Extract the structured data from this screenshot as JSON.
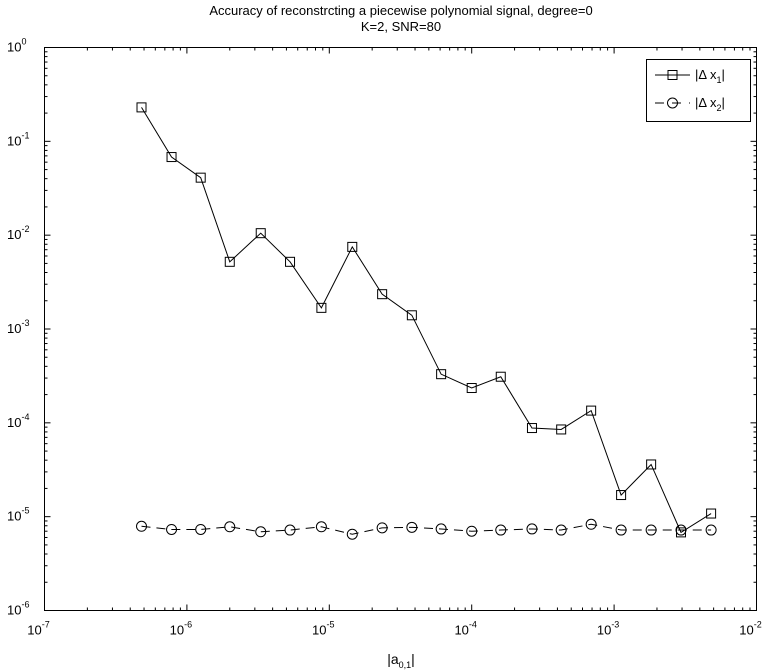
{
  "chart_data": {
    "type": "line",
    "title": "Accuracy of reconstrcting a piecewise polynomial signal, degree=0",
    "subtitle": "K=2, SNR=80",
    "xlabel": {
      "base": "|a",
      "sub": "0,1",
      "end": "|"
    },
    "ylabel": "",
    "xscale": "log",
    "yscale": "log",
    "xlim": [
      1e-07,
      0.01
    ],
    "ylim": [
      1e-06,
      1
    ],
    "grid": false,
    "legend_position": "top-right",
    "x_tick_values": [
      1e-07,
      1e-06,
      1e-05,
      0.0001,
      0.001,
      0.01
    ],
    "x_tick_labels": [
      {
        "base": "10",
        "exp": "-7"
      },
      {
        "base": "10",
        "exp": "-6"
      },
      {
        "base": "10",
        "exp": "-5"
      },
      {
        "base": "10",
        "exp": "-4"
      },
      {
        "base": "10",
        "exp": "-3"
      },
      {
        "base": "10",
        "exp": "-2"
      }
    ],
    "y_tick_values": [
      1e-06,
      1e-05,
      0.0001,
      0.001,
      0.01,
      0.1,
      1
    ],
    "y_tick_labels": [
      {
        "base": "10",
        "exp": "-6"
      },
      {
        "base": "10",
        "exp": "-5"
      },
      {
        "base": "10",
        "exp": "-4"
      },
      {
        "base": "10",
        "exp": "-3"
      },
      {
        "base": "10",
        "exp": "-2"
      },
      {
        "base": "10",
        "exp": "-1"
      },
      {
        "base": "10",
        "exp": "0"
      }
    ],
    "x": [
      4.8e-07,
      7.8e-07,
      1.25e-06,
      2e-06,
      3.3e-06,
      5.3e-06,
      8.8e-06,
      1.45e-05,
      2.35e-05,
      3.8e-05,
      6.1e-05,
      0.0001,
      0.00016,
      0.000265,
      0.000425,
      0.00069,
      0.00112,
      0.00182,
      0.00295,
      0.0048
    ],
    "series": [
      {
        "label": {
          "text": "|Δ x",
          "sub": "1",
          "end": "|"
        },
        "marker": "square",
        "line": "solid",
        "values": [
          0.23,
          0.068,
          0.041,
          0.0052,
          0.0105,
          0.0052,
          0.00168,
          0.0075,
          0.00235,
          0.0014,
          0.00033,
          0.000235,
          0.00031,
          8.8e-05,
          8.5e-05,
          0.000135,
          1.7e-05,
          3.6e-05,
          6.8e-06,
          1.08e-05
        ]
      },
      {
        "label": {
          "text": "|Δ x",
          "sub": "2",
          "end": "|"
        },
        "marker": "circle",
        "line": "dashed",
        "values": [
          7.9e-06,
          7.3e-06,
          7.3e-06,
          7.8e-06,
          6.9e-06,
          7.2e-06,
          7.8e-06,
          6.5e-06,
          7.6e-06,
          7.7e-06,
          7.4e-06,
          7e-06,
          7.2e-06,
          7.4e-06,
          7.2e-06,
          8.3e-06,
          7.2e-06,
          7.2e-06,
          7.2e-06,
          7.2e-06
        ]
      }
    ]
  }
}
